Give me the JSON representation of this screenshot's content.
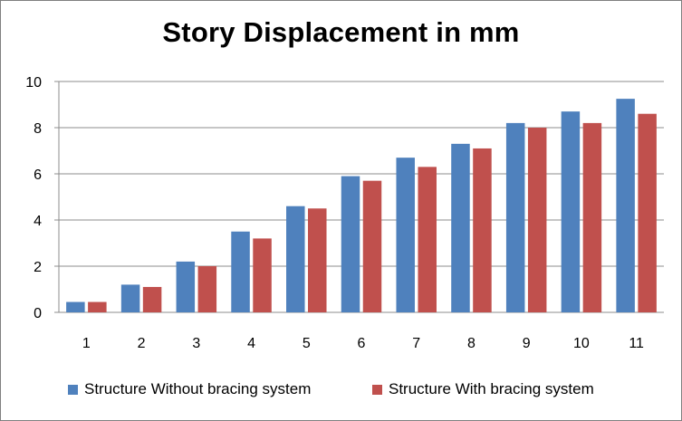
{
  "chart_data": {
    "type": "bar",
    "title": "Story Displacement in mm",
    "xlabel": "",
    "ylabel": "",
    "categories": [
      "1",
      "2",
      "3",
      "4",
      "5",
      "6",
      "7",
      "8",
      "9",
      "10",
      "11"
    ],
    "ylim": [
      0,
      10
    ],
    "yticks": [
      "0",
      "2",
      "4",
      "6",
      "8",
      "10"
    ],
    "grid": true,
    "legend_position": "bottom",
    "series": [
      {
        "name": "Structure Without bracing system",
        "color": "#4f81bd",
        "values": [
          0.45,
          1.2,
          2.2,
          3.5,
          4.6,
          5.9,
          6.7,
          7.3,
          8.2,
          8.7,
          9.25
        ]
      },
      {
        "name": "Structure With bracing system",
        "color": "#c0504d",
        "values": [
          0.45,
          1.1,
          2.0,
          3.2,
          4.5,
          5.7,
          6.3,
          7.1,
          8.0,
          8.2,
          8.6
        ]
      }
    ]
  }
}
